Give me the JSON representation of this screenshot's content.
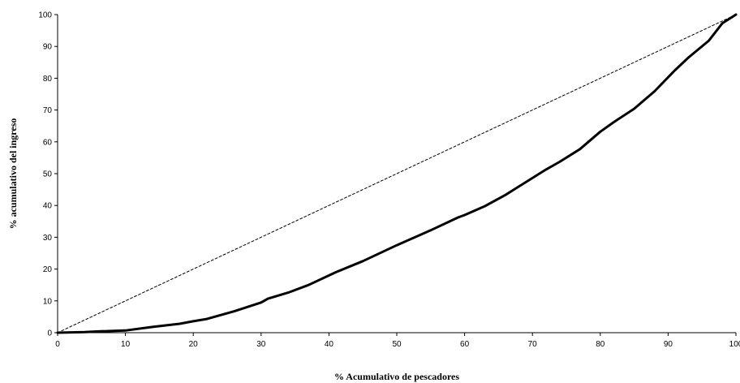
{
  "chart_data": {
    "type": "line",
    "title": "",
    "xlabel": "% Acumulativo de pescadores",
    "ylabel": "% acumulativo del ingreso",
    "xlim": [
      0,
      100
    ],
    "ylim": [
      0,
      100
    ],
    "x_ticks": [
      0,
      10,
      20,
      30,
      40,
      50,
      60,
      70,
      80,
      90,
      100
    ],
    "y_ticks": [
      0,
      10,
      20,
      30,
      40,
      50,
      60,
      70,
      80,
      90,
      100
    ],
    "grid": false,
    "legend": "none",
    "series": [
      {
        "style": "dashed",
        "color": "#000000",
        "x": [
          0,
          100
        ],
        "y": [
          0,
          100
        ]
      },
      {
        "style": "solid",
        "color": "#000000",
        "x": [
          0,
          4,
          6,
          10,
          14,
          18,
          20,
          22,
          26,
          30,
          31,
          34,
          37,
          41,
          45,
          50,
          55,
          59,
          60,
          63,
          66,
          69,
          72,
          74,
          77,
          80,
          82,
          85,
          88,
          91,
          93,
          96,
          98,
          100
        ],
        "y": [
          0,
          0.2,
          0.4,
          0.7,
          1.8,
          2.8,
          3.6,
          4.3,
          6.7,
          9.5,
          10.7,
          12.6,
          15,
          19,
          22.5,
          27.5,
          32.2,
          36.2,
          37,
          39.8,
          43.3,
          47.3,
          51.3,
          53.7,
          57.7,
          63.2,
          66.2,
          70.4,
          75.9,
          82.5,
          86.5,
          91.8,
          97.3,
          100
        ]
      }
    ]
  }
}
